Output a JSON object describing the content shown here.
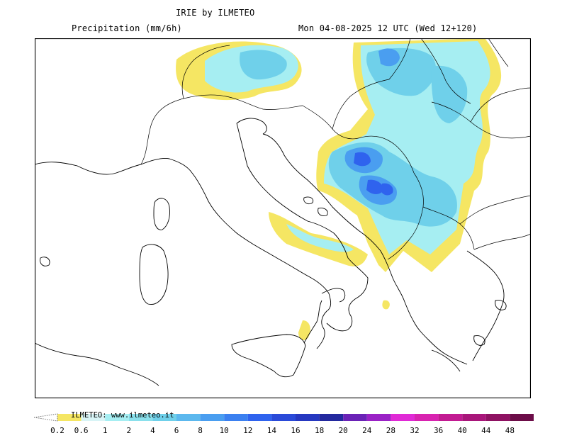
{
  "header": {
    "model_title": "IRIE by ILMETEO",
    "variable": "Precipitation (mm/6h)",
    "valid_time": "Mon 04-08-2025 12 UTC (Wed 12+120)"
  },
  "legend": {
    "credit": "ILMETEO: www.ilmeteo.it",
    "ticks": [
      "0.2",
      "0.6",
      "1",
      "2",
      "4",
      "6",
      "8",
      "10",
      "12",
      "14",
      "16",
      "18",
      "20",
      "24",
      "28",
      "32",
      "36",
      "40",
      "44",
      "48"
    ],
    "colors": [
      "#f5e663",
      "#d8f4f6",
      "#a6eef2",
      "#8ae0ec",
      "#6fd0ea",
      "#5cb8ee",
      "#4a9ef0",
      "#3b80f0",
      "#2f63ee",
      "#2a4ad8",
      "#2638c0",
      "#23299e",
      "#6a22b6",
      "#9a22c6",
      "#e02ad6",
      "#d823b0",
      "#c21b92",
      "#a8167a",
      "#8e1262",
      "#6c0d48"
    ]
  },
  "map": {
    "colors": {
      "light_rain": "#f5e663",
      "rain_1": "#a6eef2",
      "rain_2": "#6fd0ea",
      "rain_4": "#5cb8ee",
      "rain_8": "#3b80f0",
      "rain_12": "#2a4ad8",
      "coast": "#000000"
    }
  }
}
